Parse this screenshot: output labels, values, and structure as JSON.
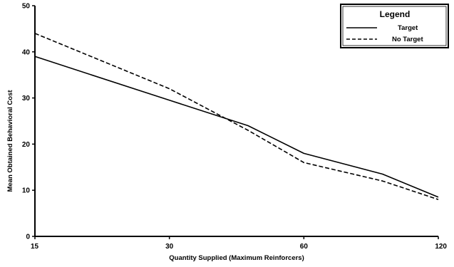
{
  "chart_data": {
    "type": "line",
    "xlabel": "Quantity Supplied (Maximum Reinforcers)",
    "ylabel": "Mean Obtained Behavioral Cost",
    "x_scale": "log",
    "xlim": [
      15,
      120
    ],
    "ylim": [
      0,
      50
    ],
    "x_ticks": [
      15,
      30,
      60,
      120
    ],
    "y_ticks": [
      0,
      10,
      20,
      30,
      40,
      50
    ],
    "grid": false,
    "legend": {
      "title": "Legend",
      "placement": "top-right"
    },
    "series": [
      {
        "name": "Target",
        "line_style": "solid",
        "color": "#000000",
        "x": [
          15,
          30,
          45,
          60,
          90,
          120
        ],
        "y": [
          39,
          29.5,
          24,
          18,
          13.5,
          8.5
        ]
      },
      {
        "name": "No Target",
        "line_style": "dashed",
        "color": "#000000",
        "x": [
          15,
          30,
          45,
          60,
          90,
          120
        ],
        "y": [
          44,
          32,
          23,
          16,
          12,
          8
        ]
      }
    ]
  }
}
